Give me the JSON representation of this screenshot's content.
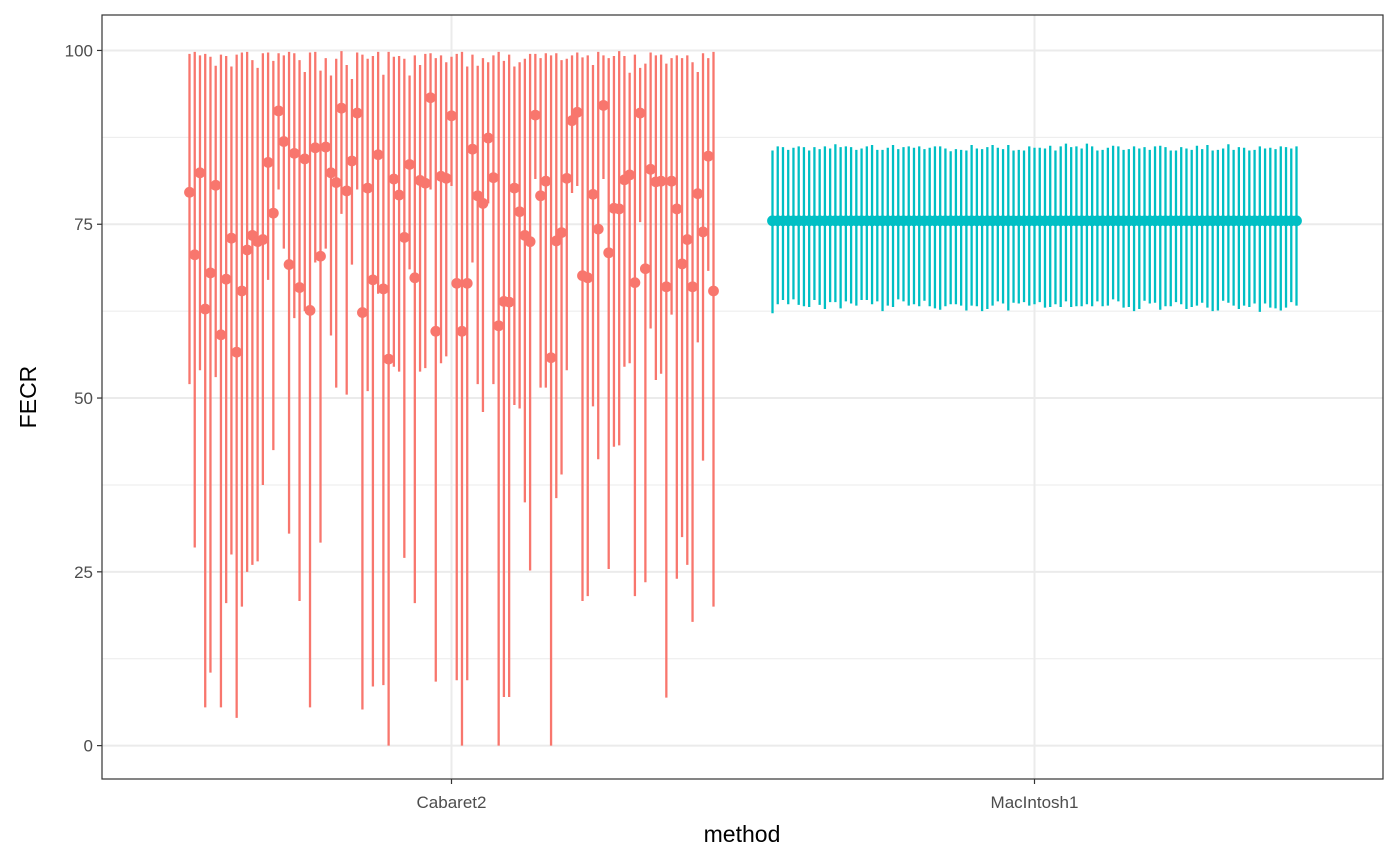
{
  "chart_data": {
    "type": "scatter",
    "title": "",
    "xlabel": "method",
    "ylabel": "FECR",
    "categories": [
      "Cabaret2",
      "MacIntosh1"
    ],
    "ylim": [
      -4.8,
      105.1
    ],
    "yticks": [
      0,
      25,
      50,
      75,
      100
    ],
    "grid": true,
    "legend": "none",
    "series": [
      {
        "category": "Cabaret2",
        "color": "#F8766D",
        "estimates": [
          79.6,
          70.6,
          82.4,
          62.8,
          68.0,
          80.6,
          59.1,
          67.1,
          73.0,
          56.6,
          65.4,
          71.3,
          73.4,
          72.5,
          72.8,
          83.9,
          76.6,
          91.3,
          86.9,
          69.2,
          85.2,
          65.9,
          84.4,
          62.6,
          86.0,
          70.4,
          86.1,
          82.4,
          81.0,
          91.7,
          79.8,
          84.1,
          91.0,
          62.3,
          80.2,
          67.0,
          85.0,
          65.7,
          55.6,
          81.5,
          79.2,
          73.1,
          83.6,
          67.3,
          81.3,
          80.9,
          93.2,
          59.6,
          81.9,
          81.6,
          90.6,
          66.5,
          59.6,
          66.5,
          85.8,
          79.1,
          78.0,
          87.4,
          81.7,
          60.4,
          63.9,
          63.8,
          80.2,
          76.8,
          73.4,
          72.5,
          90.7,
          79.1,
          81.2,
          55.8,
          72.6,
          73.8,
          81.6,
          89.9,
          91.1,
          67.6,
          67.3,
          79.3,
          74.3,
          92.1,
          70.9,
          77.3,
          77.2,
          81.4,
          82.1,
          66.6,
          91.0,
          68.6,
          82.9,
          81.1,
          81.2,
          66.0,
          81.2,
          77.2,
          69.3,
          72.8,
          66.0,
          79.4,
          73.9,
          84.8,
          65.4
        ],
        "lower": [
          52,
          28.5,
          54,
          5.5,
          10.5,
          53,
          5.5,
          20.5,
          27.5,
          4,
          20,
          25,
          26,
          26.5,
          37.5,
          67,
          42.5,
          80,
          71.5,
          30.5,
          61.5,
          20.8,
          62.5,
          5.5,
          69.5,
          29.2,
          71.5,
          59,
          51.5,
          76.5,
          50.5,
          69.2,
          80,
          5.2,
          51,
          8.5,
          65,
          8.7,
          0,
          54.5,
          53.8,
          27,
          68.5,
          20.5,
          53.8,
          54.3,
          80,
          9.2,
          55,
          56,
          80.5,
          9.4,
          0,
          9.4,
          69.5,
          52,
          48,
          78,
          52,
          0,
          7,
          7,
          49,
          48.5,
          35,
          25.2,
          81.5,
          51.5,
          51.5,
          0,
          35.6,
          39,
          54,
          79.5,
          80.5,
          20.8,
          21.5,
          48.8,
          41.2,
          81.5,
          25.4,
          43,
          43.2,
          54.5,
          55,
          21.5,
          75.3,
          23.5,
          60,
          52.6,
          53.5,
          6.9,
          62,
          24,
          30,
          26,
          17.8,
          58,
          41,
          68.3,
          20
        ],
        "upper": [
          99.5,
          99.8,
          99.3,
          99.5,
          99.1,
          97.8,
          99.4,
          99.2,
          97.7,
          99.4,
          99.7,
          99.8,
          98.6,
          97.5,
          99.6,
          99.7,
          98.5,
          99.6,
          99.3,
          99.8,
          99.6,
          98.6,
          96.9,
          99.7,
          99.8,
          97.1,
          98.9,
          96.4,
          98.8,
          99.9,
          97.9,
          95.9,
          99.7,
          99.4,
          98.8,
          99.2,
          99.8,
          96.5,
          99.8,
          99.1,
          99.2,
          98.8,
          96.4,
          99.3,
          97.9,
          99.5,
          99.6,
          98.9,
          99.3,
          98.3,
          99.1,
          99.5,
          99.8,
          97.7,
          99.4,
          97.8,
          98.9,
          98.3,
          99.3,
          99.8,
          98.5,
          99.4,
          97.7,
          98.3,
          98.8,
          99.5,
          99.5,
          98.9,
          99.6,
          99.3,
          99.6,
          98.6,
          98.8,
          99.3,
          99.7,
          99.0,
          99.3,
          97.9,
          99.8,
          99.3,
          98.9,
          99.2,
          99.9,
          99.2,
          96.8,
          99.4,
          97.5,
          98.1,
          99.7,
          99.3,
          99.4,
          98.1,
          98.9,
          99.3,
          98.9,
          99.3,
          98.3,
          96.9,
          99.6,
          98.9,
          99.8
        ]
      },
      {
        "category": "MacIntosh1",
        "color": "#00BFC4",
        "estimate_constant": 75.5,
        "estimates": [],
        "lower": [
          62.2,
          63.5,
          64.1,
          63.5,
          64.2,
          63.4,
          63.2,
          63.1,
          64.1,
          63.4,
          62.8,
          63.8,
          63.8,
          62.9,
          63.9,
          63.6,
          63.3,
          64.1,
          64.1,
          63.5,
          63.9,
          62.5,
          63.3,
          63.1,
          64.2,
          63.9,
          63.3,
          63.5,
          63.2,
          64.0,
          63.2,
          62.9,
          62.7,
          63.2,
          63.5,
          63.5,
          63.3,
          62.6,
          63.3,
          63.2,
          62.5,
          62.8,
          63.3,
          63.9,
          63.6,
          62.6,
          63.7,
          63.6,
          63.8,
          63.3,
          63.5,
          63.8,
          63.0,
          63.1,
          63.5,
          63.1,
          63.9,
          63.1,
          63.2,
          63.2,
          63.5,
          63.2,
          63.9,
          63.2,
          63.3,
          64.2,
          63.9,
          63.0,
          63.1,
          62.5,
          62.8,
          64.0,
          63.6,
          63.7,
          62.7,
          63.2,
          63.2,
          63.8,
          63.5,
          62.8,
          63.1,
          63.3,
          63.7,
          63.0,
          62.5,
          62.6,
          64.0,
          63.7,
          63.3,
          62.8,
          63.3,
          63.1,
          63.6,
          62.4,
          63.6,
          63.0,
          62.9,
          62.6,
          63.0,
          63.8,
          63.3
        ],
        "upper": [
          85.6,
          86.2,
          86.1,
          85.7,
          86.0,
          86.2,
          86.1,
          85.6,
          86.1,
          85.8,
          86.2,
          85.9,
          86.5,
          86.1,
          86.2,
          86.1,
          85.7,
          85.9,
          86.2,
          86.4,
          85.7,
          85.7,
          86.0,
          86.4,
          85.8,
          86.1,
          86.2,
          86.0,
          86.2,
          85.8,
          86.0,
          86.2,
          86.2,
          85.9,
          85.5,
          85.8,
          85.7,
          85.6,
          86.4,
          85.9,
          85.8,
          86.1,
          86.4,
          86.0,
          85.8,
          86.4,
          85.6,
          85.7,
          85.6,
          86.2,
          86.0,
          86.0,
          85.9,
          86.3,
          85.6,
          86.2,
          86.6,
          86.1,
          86.2,
          85.9,
          86.6,
          86.2,
          85.6,
          85.7,
          86.0,
          86.3,
          86.2,
          85.7,
          85.8,
          86.2,
          85.9,
          86.1,
          85.7,
          86.2,
          86.3,
          86.1,
          85.6,
          85.6,
          86.1,
          85.9,
          85.7,
          86.3,
          85.8,
          86.4,
          85.6,
          85.7,
          85.9,
          86.5,
          85.7,
          86.1,
          86.0,
          85.6,
          85.7,
          86.2,
          85.9,
          86.0,
          85.8,
          86.2,
          86.1,
          85.9,
          86.2
        ]
      }
    ]
  }
}
